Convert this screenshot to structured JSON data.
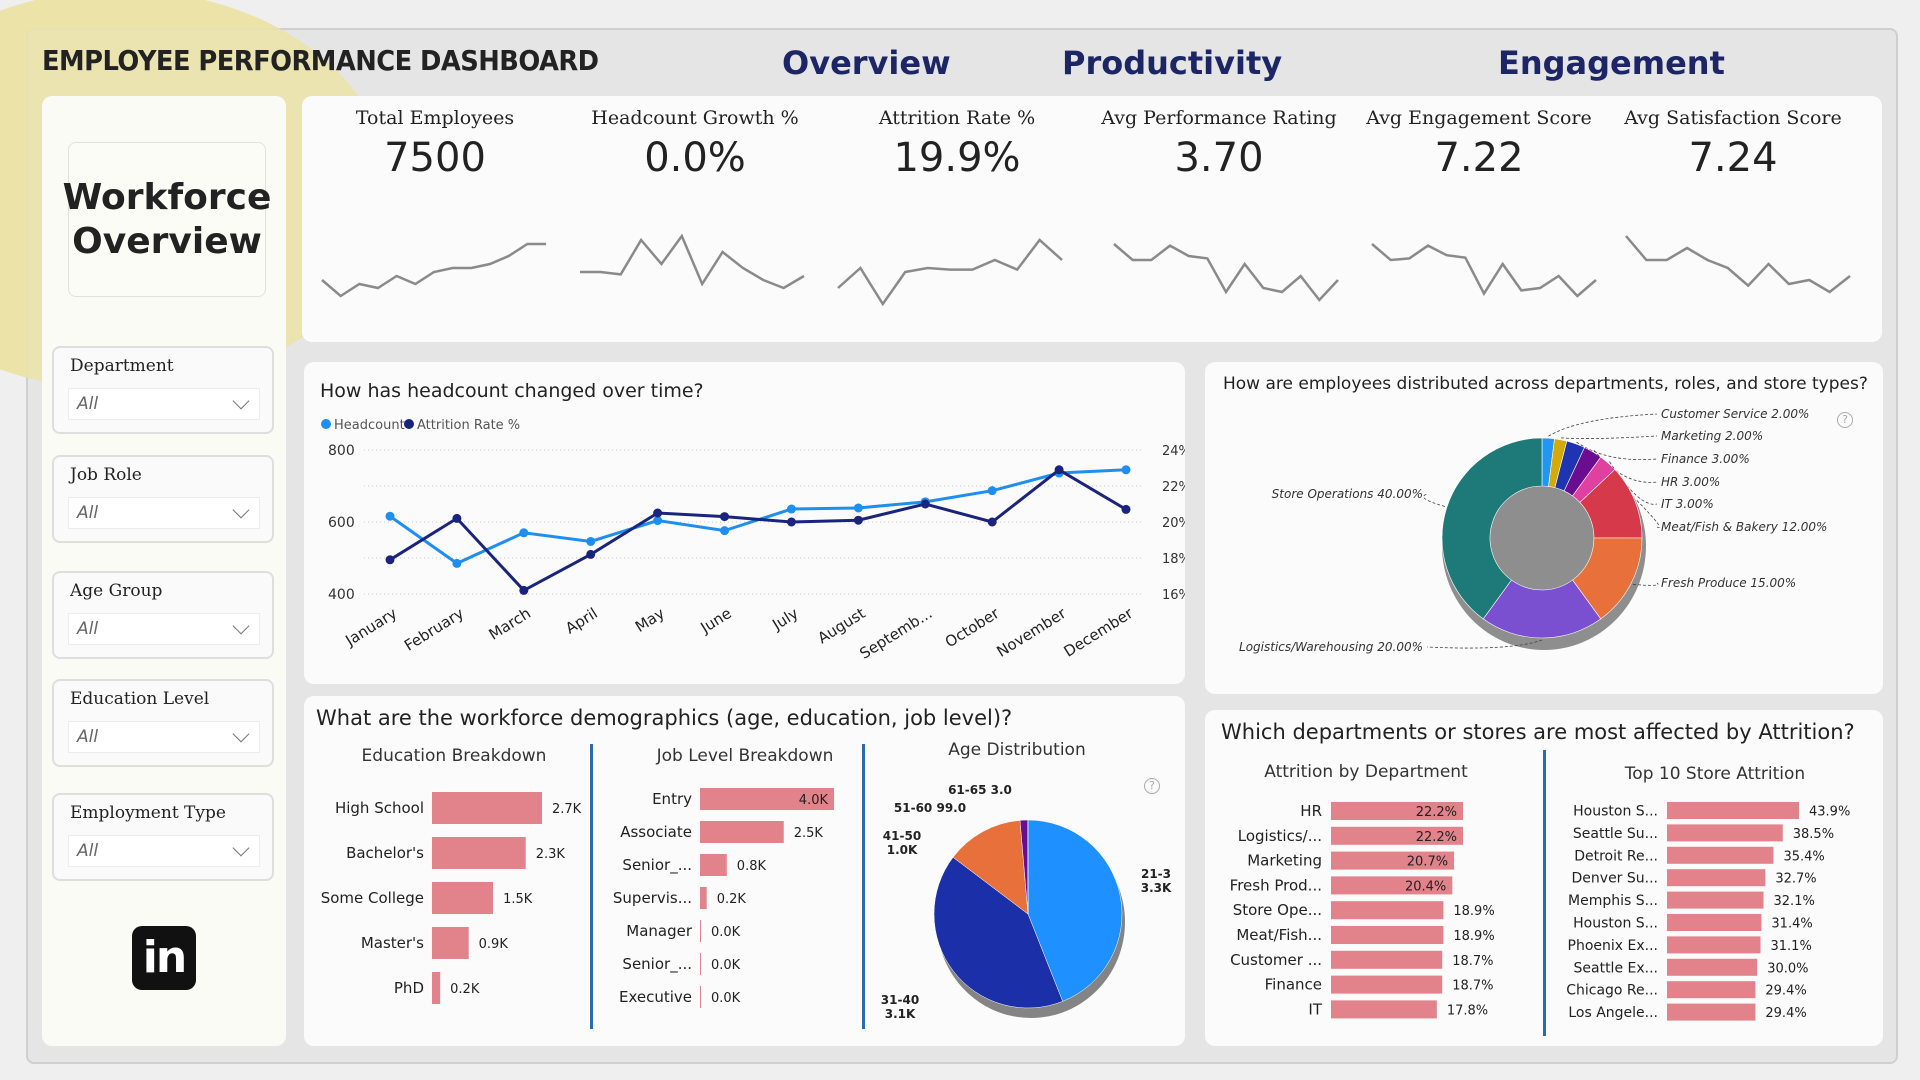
{
  "header": {
    "title": "EMPLOYEE PERFORMANCE DASHBOARD",
    "nav_tabs": [
      {
        "label": "Overview"
      },
      {
        "label": "Productivity"
      },
      {
        "label": "Engagement"
      }
    ]
  },
  "sidebar": {
    "page_title_line1": "Workforce",
    "page_title_line2": "Overview",
    "slicers": [
      {
        "label": "Department",
        "value": "All"
      },
      {
        "label": "Job Role",
        "value": "All"
      },
      {
        "label": "Age Group",
        "value": "All"
      },
      {
        "label": "Education Level",
        "value": "All"
      },
      {
        "label": "Employment Type",
        "value": "All"
      }
    ],
    "logo": "in",
    "logo_icon": "linkedin-icon"
  },
  "kpis": [
    {
      "title": "Total Employees",
      "value": "7500",
      "trend": [
        0.35,
        0.15,
        0.3,
        0.25,
        0.4,
        0.3,
        0.45,
        0.5,
        0.5,
        0.55,
        0.65,
        0.8,
        0.8
      ]
    },
    {
      "title": "Headcount Growth %",
      "value": "0.0%",
      "trend": [
        0.45,
        0.45,
        0.42,
        0.85,
        0.55,
        0.9,
        0.3,
        0.7,
        0.5,
        0.35,
        0.25,
        0.4
      ]
    },
    {
      "title": "Attrition Rate %",
      "value": "19.9%",
      "trend": [
        0.25,
        0.5,
        0.05,
        0.45,
        0.5,
        0.48,
        0.48,
        0.6,
        0.48,
        0.85,
        0.6
      ]
    },
    {
      "title": "Avg Performance Rating",
      "value": "3.70",
      "trend": [
        0.8,
        0.6,
        0.6,
        0.78,
        0.65,
        0.62,
        0.2,
        0.55,
        0.25,
        0.2,
        0.4,
        0.1,
        0.35
      ]
    },
    {
      "title": "Avg Engagement Score",
      "value": "7.22",
      "trend": [
        0.8,
        0.6,
        0.62,
        0.78,
        0.66,
        0.63,
        0.18,
        0.55,
        0.22,
        0.25,
        0.4,
        0.15,
        0.35
      ]
    },
    {
      "title": "Avg Satisfaction Score",
      "value": "7.24",
      "trend": [
        0.9,
        0.6,
        0.6,
        0.75,
        0.6,
        0.5,
        0.28,
        0.55,
        0.3,
        0.35,
        0.2,
        0.4
      ]
    }
  ],
  "headcount_panel": {
    "title": "How has headcount changed over time?"
  },
  "distribution_panel": {
    "title": "How are employees distributed across departments, roles, and store types?",
    "help_icon": "question-circle-icon"
  },
  "demographics_panel": {
    "title": "What are the workforce demographics (age, education, job level)?",
    "help_icon": "question-circle-icon"
  },
  "attrition_panel": {
    "title": "Which departments or stores are most affected by Attrition?"
  },
  "chart_data": [
    {
      "id": "headcount-trend",
      "type": "line",
      "title": "How has headcount changed over time?",
      "categories": [
        "January",
        "February",
        "March",
        "April",
        "May",
        "June",
        "July",
        "August",
        "Septemb...",
        "October",
        "November",
        "December"
      ],
      "series": [
        {
          "name": "Headcount",
          "axis": "left",
          "color": "#1f8fef",
          "values": [
            616,
            485,
            570,
            546,
            604,
            576,
            636,
            639,
            656,
            687,
            736,
            745
          ]
        },
        {
          "name": "Attrition Rate %",
          "axis": "right",
          "color": "#1a237e",
          "values": [
            17.9,
            20.2,
            16.2,
            18.2,
            20.5,
            20.3,
            20.0,
            20.1,
            21.0,
            20.0,
            22.9,
            20.7
          ]
        }
      ],
      "y_left": {
        "min": 400,
        "max": 800,
        "ticks": [
          "800",
          "600",
          "400"
        ],
        "tick_values": [
          800,
          600,
          400
        ]
      },
      "y_right": {
        "min": 16,
        "max": 24,
        "ticks": [
          "24%",
          "22%",
          "20%",
          "18%",
          "16%"
        ],
        "tick_values": [
          24,
          22,
          20,
          18,
          16
        ]
      },
      "legend": "top-left",
      "grid": true
    },
    {
      "id": "department-donut",
      "type": "pie",
      "donut": true,
      "title": "How are employees distributed across departments, roles, and store types?",
      "slices": [
        {
          "label": "Customer Service",
          "value": 2.0,
          "display": "Customer Service 2.00%",
          "color": "#2196f3"
        },
        {
          "label": "Marketing",
          "value": 2.0,
          "display": "Marketing 2.00%",
          "color": "#d4a90a"
        },
        {
          "label": "Finance",
          "value": 3.0,
          "display": "Finance 3.00%",
          "color": "#1f34b0"
        },
        {
          "label": "HR",
          "value": 3.0,
          "display": "HR 3.00%",
          "color": "#6a0d91"
        },
        {
          "label": "IT",
          "value": 3.0,
          "display": "IT 3.00%",
          "color": "#e040a0"
        },
        {
          "label": "Meat/Fish & Bakery",
          "value": 12.0,
          "display": "Meat/Fish & Bakery 12.00%",
          "color": "#d63a4a"
        },
        {
          "label": "Fresh Produce",
          "value": 15.0,
          "display": "Fresh Produce 15.00%",
          "color": "#e8703a"
        },
        {
          "label": "Logistics/Warehousing",
          "value": 20.0,
          "display": "Logistics/Warehousing 20.00%",
          "color": "#7a4fd0"
        },
        {
          "label": "Store Operations",
          "value": 40.0,
          "display": "Store Operations 40.00%",
          "color": "#1e7a78"
        }
      ]
    },
    {
      "id": "education-breakdown",
      "type": "bar",
      "orientation": "horizontal",
      "title": "Education Breakdown",
      "categories": [
        "High School",
        "Bachelor's",
        "Some College",
        "Master's",
        "PhD"
      ],
      "values": [
        2.7,
        2.3,
        1.5,
        0.9,
        0.2
      ],
      "labels": [
        "2.7K",
        "2.3K",
        "1.5K",
        "0.9K",
        "0.2K"
      ],
      "unit": "K",
      "color": "#e2828a"
    },
    {
      "id": "job-level-breakdown",
      "type": "bar",
      "orientation": "horizontal",
      "title": "Job Level Breakdown",
      "categories": [
        "Entry",
        "Associate",
        "Senior_...",
        "Supervis...",
        "Manager",
        "Senior_...",
        "Executive"
      ],
      "values": [
        4.0,
        2.5,
        0.8,
        0.2,
        0.0,
        0.0,
        0.0
      ],
      "labels": [
        "4.0K",
        "2.5K",
        "0.8K",
        "0.2K",
        "0.0K",
        "0.0K",
        "0.0K"
      ],
      "unit": "K",
      "color": "#e2828a"
    },
    {
      "id": "age-distribution",
      "type": "pie",
      "title": "Age Distribution",
      "slices": [
        {
          "label": "21-30",
          "value": 3300,
          "display": "21-3\n3.3K",
          "color": "#1e90ff"
        },
        {
          "label": "31-40",
          "value": 3100,
          "display": "31-40\n3.1K",
          "color": "#1a2fa8"
        },
        {
          "label": "41-50",
          "value": 1000,
          "display": "41-50\n1.0K",
          "color": "#e8703a"
        },
        {
          "label": "51-60",
          "value": 99,
          "display": "51-60 99.0",
          "color": "#6a0d91"
        },
        {
          "label": "61-65",
          "value": 3,
          "display": "61-65 3.0",
          "color": "#d63a4a"
        }
      ]
    },
    {
      "id": "attrition-by-department",
      "type": "bar",
      "orientation": "horizontal",
      "title": "Attrition by Department",
      "categories": [
        "HR",
        "Logistics/...",
        "Marketing",
        "Fresh Prod...",
        "Store Ope...",
        "Meat/Fish...",
        "Customer ...",
        "Finance",
        "IT"
      ],
      "values": [
        22.2,
        22.2,
        20.7,
        20.4,
        18.9,
        18.9,
        18.7,
        18.7,
        17.8
      ],
      "labels": [
        "22.2%",
        "22.2%",
        "20.7%",
        "20.4%",
        "18.9%",
        "18.9%",
        "18.7%",
        "18.7%",
        "17.8%"
      ],
      "color": "#e2828a"
    },
    {
      "id": "top10-store-attrition",
      "type": "bar",
      "orientation": "horizontal",
      "title": "Top 10 Store Attrition",
      "categories": [
        "Houston S...",
        "Seattle Su...",
        "Detroit Re...",
        "Denver Su...",
        "Memphis S...",
        "Houston S...",
        "Phoenix Ex...",
        "Seattle Ex...",
        "Chicago Re...",
        "Los Angele..."
      ],
      "values": [
        43.9,
        38.5,
        35.4,
        32.7,
        32.1,
        31.4,
        31.1,
        30.0,
        29.4,
        29.4
      ],
      "labels": [
        "43.9%",
        "38.5%",
        "35.4%",
        "32.7%",
        "32.1%",
        "31.4%",
        "31.1%",
        "30.0%",
        "29.4%",
        "29.4%"
      ],
      "color": "#e2828a"
    }
  ]
}
